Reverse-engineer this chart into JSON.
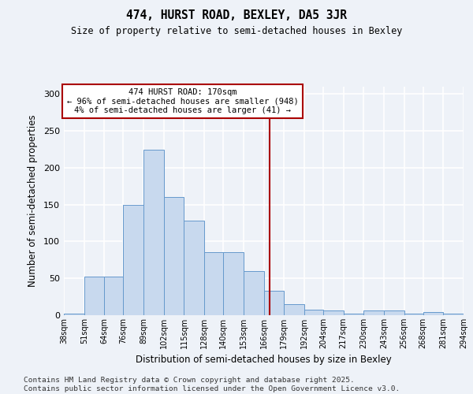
{
  "title": "474, HURST ROAD, BEXLEY, DA5 3JR",
  "subtitle": "Size of property relative to semi-detached houses in Bexley",
  "xlabel": "Distribution of semi-detached houses by size in Bexley",
  "ylabel": "Number of semi-detached properties",
  "bar_color": "#c8d9ee",
  "bar_edge_color": "#6699cc",
  "background_color": "#eef2f8",
  "grid_color": "#ffffff",
  "vline_x": 170,
  "vline_color": "#aa0000",
  "annotation_text": "474 HURST ROAD: 170sqm\n← 96% of semi-detached houses are smaller (948)\n4% of semi-detached houses are larger (41) →",
  "annotation_box_color": "#aa0000",
  "bins": [
    38,
    51,
    64,
    76,
    89,
    102,
    115,
    128,
    140,
    153,
    166,
    179,
    192,
    204,
    217,
    230,
    243,
    256,
    268,
    281,
    294
  ],
  "counts": [
    2,
    52,
    52,
    150,
    225,
    160,
    128,
    85,
    85,
    60,
    33,
    15,
    8,
    6,
    2,
    6,
    6,
    2,
    4,
    2,
    0
  ],
  "ylim": [
    0,
    310
  ],
  "yticks": [
    0,
    50,
    100,
    150,
    200,
    250,
    300
  ],
  "footer": "Contains HM Land Registry data © Crown copyright and database right 2025.\nContains public sector information licensed under the Open Government Licence v3.0.",
  "footer_fontsize": 6.8
}
